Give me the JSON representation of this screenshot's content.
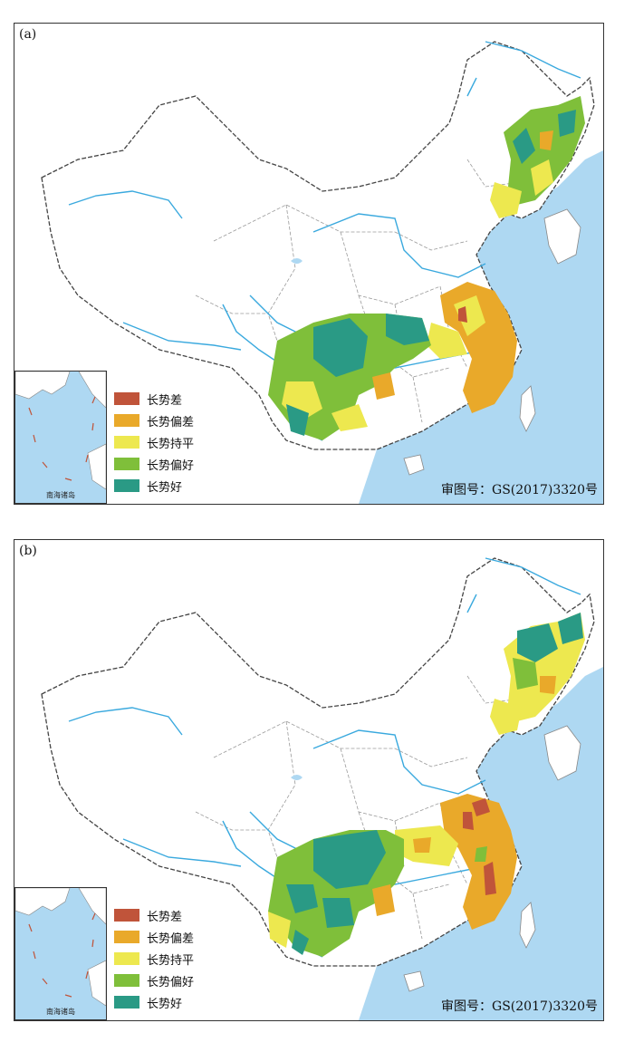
{
  "panels": [
    {
      "label": "(a)"
    },
    {
      "label": "(b)"
    }
  ],
  "legend": [
    {
      "label": "长势差",
      "color": "#c0543a"
    },
    {
      "label": "长势偏差",
      "color": "#e9a92a"
    },
    {
      "label": "长势持平",
      "color": "#ede84f"
    },
    {
      "label": "长势偏好",
      "color": "#7fbf3a"
    },
    {
      "label": "长势好",
      "color": "#2a9a85"
    }
  ],
  "inset_label": "南海诸岛",
  "approval_number": "审图号：GS(2017)3320号",
  "colors": {
    "sea": "#aed8f2",
    "river": "#3aa9de",
    "border": "#555555",
    "province_border": "#9a9a9a"
  }
}
